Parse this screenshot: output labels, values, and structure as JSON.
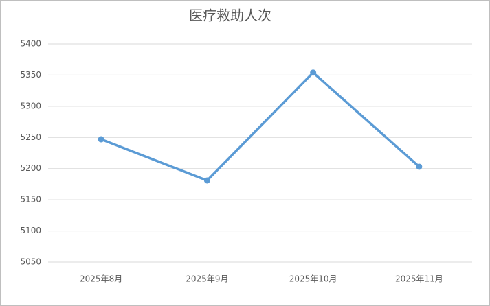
{
  "chart_data": {
    "type": "line",
    "title": "医疗救助人次",
    "categories": [
      "2025年8月",
      "2025年9月",
      "2025年10月",
      "2025年11月"
    ],
    "values": [
      5247,
      5181,
      5354,
      5203
    ],
    "color": "#5b9bd5",
    "ylim": [
      5050,
      5400
    ],
    "yticks": [
      5050,
      5100,
      5150,
      5200,
      5250,
      5300,
      5350,
      5400
    ],
    "grid": true
  }
}
